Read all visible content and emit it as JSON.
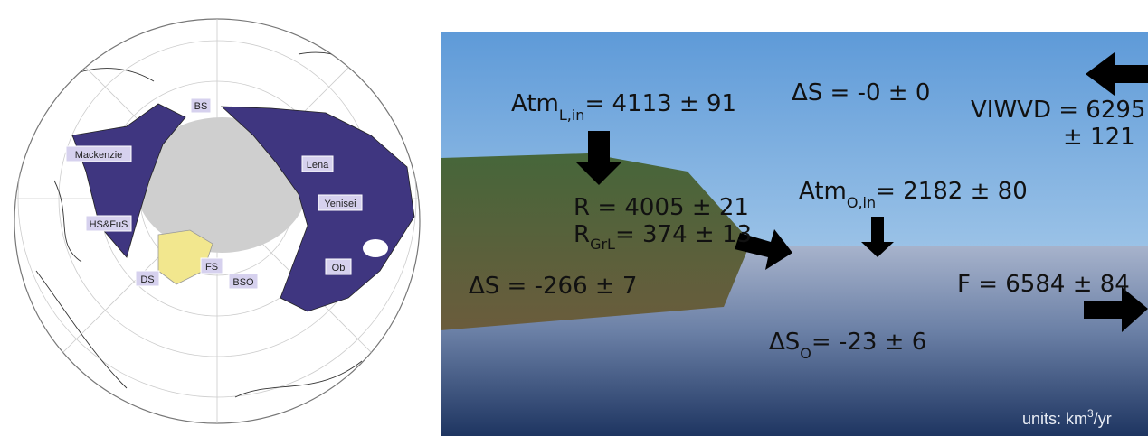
{
  "map": {
    "labels": [
      "BS",
      "Mackenzie",
      "Lena",
      "Yenisei",
      "HS&FuS",
      "DS",
      "FS",
      "BSO",
      "Ob"
    ]
  },
  "diagram": {
    "atm_land": {
      "symbol": "Atm",
      "subscript": "L,in",
      "text": "= 4113 ± 91"
    },
    "storage_atm": {
      "symbol": "ΔS",
      "text": " = -0 ± 0"
    },
    "viwvd": {
      "line1": "VIWVD = 6295",
      "line2": "± 121"
    },
    "runoff": {
      "text": "R = 4005 ± 21"
    },
    "runoff_greenland": {
      "symbol": "R",
      "subscript": "GrL",
      "text": "= 374 ± 13"
    },
    "atm_ocean": {
      "symbol": "Atm",
      "subscript": "O,in",
      "text": "= 2182 ± 80"
    },
    "storage_land": {
      "symbol": "ΔS",
      "text": " = -266 ± 7"
    },
    "export": {
      "text": "F = 6584 ± 84"
    },
    "storage_ocean": {
      "symbol": "ΔS",
      "subscript": "O",
      "text": "= -23 ± 6"
    },
    "units": {
      "prefix": "units: km",
      "superscript": "3",
      "suffix": "/yr"
    }
  }
}
